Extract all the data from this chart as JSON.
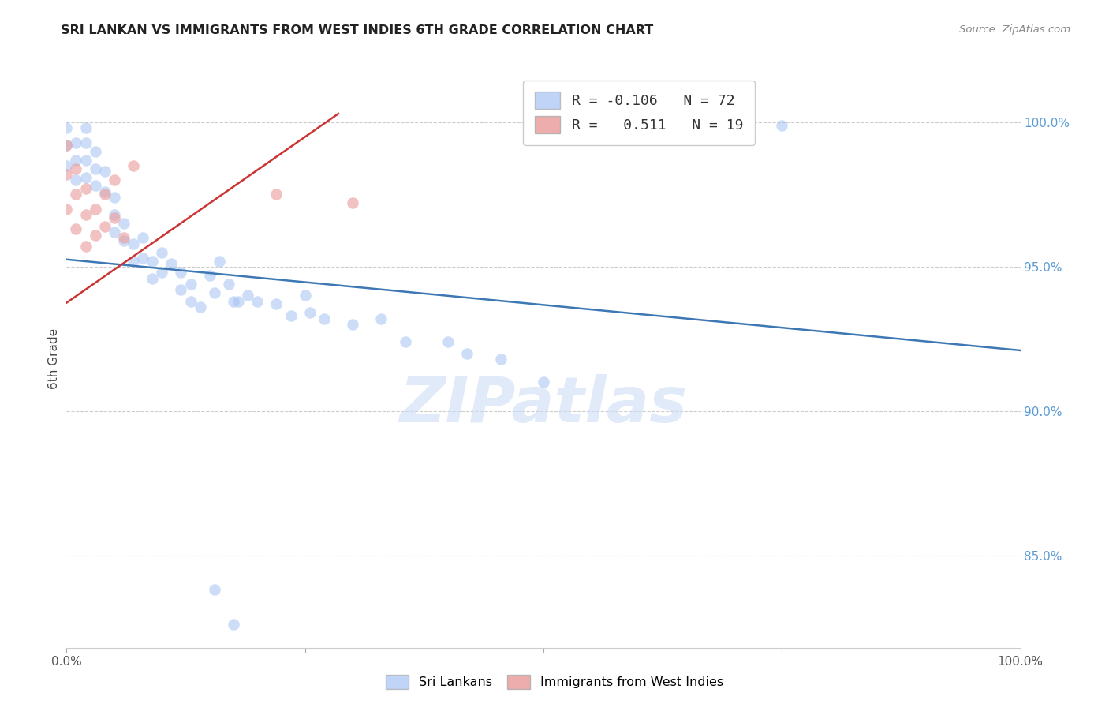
{
  "title": "SRI LANKAN VS IMMIGRANTS FROM WEST INDIES 6TH GRADE CORRELATION CHART",
  "source": "Source: ZipAtlas.com",
  "ylabel": "6th Grade",
  "right_yticks": [
    "100.0%",
    "95.0%",
    "90.0%",
    "85.0%"
  ],
  "right_ytick_vals": [
    1.0,
    0.95,
    0.9,
    0.85
  ],
  "xlim": [
    0.0,
    1.0
  ],
  "ylim": [
    0.818,
    1.018
  ],
  "legend_blue_r": "-0.106",
  "legend_blue_n": "72",
  "legend_pink_r": "0.511",
  "legend_pink_n": "19",
  "blue_color": "#a4c2f4",
  "pink_color": "#ea9999",
  "trendline_blue_color": "#3d78b5",
  "trendline_pink_color": "#cc3333",
  "watermark_text": "ZIPatlas",
  "blue_trendline_x": [
    0.0,
    1.0
  ],
  "blue_trendline_y": [
    0.9525,
    0.921
  ],
  "pink_trendline_x": [
    0.0,
    0.285
  ],
  "pink_trendline_y": [
    0.9375,
    1.003
  ],
  "blue_scatter_x": [
    0.0,
    0.0,
    0.0,
    0.01,
    0.01,
    0.01,
    0.02,
    0.02,
    0.02,
    0.02,
    0.03,
    0.03,
    0.03,
    0.04,
    0.04,
    0.05,
    0.05,
    0.05,
    0.06,
    0.06,
    0.07,
    0.07,
    0.08,
    0.08,
    0.09,
    0.09,
    0.1,
    0.1,
    0.11,
    0.12,
    0.12,
    0.13,
    0.13,
    0.14,
    0.15,
    0.155,
    0.16,
    0.17,
    0.175,
    0.18,
    0.19,
    0.2,
    0.22,
    0.235,
    0.25,
    0.255,
    0.27,
    0.3,
    0.33,
    0.355,
    0.4,
    0.42,
    0.455,
    0.5,
    0.155,
    0.175,
    0.65,
    0.75
  ],
  "blue_scatter_y": [
    0.998,
    0.992,
    0.985,
    0.993,
    0.987,
    0.98,
    0.998,
    0.993,
    0.987,
    0.981,
    0.99,
    0.984,
    0.978,
    0.983,
    0.976,
    0.974,
    0.968,
    0.962,
    0.965,
    0.959,
    0.958,
    0.952,
    0.96,
    0.953,
    0.952,
    0.946,
    0.955,
    0.948,
    0.951,
    0.948,
    0.942,
    0.944,
    0.938,
    0.936,
    0.947,
    0.941,
    0.952,
    0.944,
    0.938,
    0.938,
    0.94,
    0.938,
    0.937,
    0.933,
    0.94,
    0.934,
    0.932,
    0.93,
    0.932,
    0.924,
    0.924,
    0.92,
    0.918,
    0.91,
    0.838,
    0.826,
    1.0,
    0.999
  ],
  "pink_scatter_x": [
    0.0,
    0.0,
    0.0,
    0.01,
    0.01,
    0.01,
    0.02,
    0.02,
    0.02,
    0.03,
    0.03,
    0.04,
    0.04,
    0.05,
    0.05,
    0.06,
    0.07,
    0.22,
    0.3
  ],
  "pink_scatter_y": [
    0.992,
    0.982,
    0.97,
    0.984,
    0.975,
    0.963,
    0.977,
    0.968,
    0.957,
    0.97,
    0.961,
    0.975,
    0.964,
    0.98,
    0.967,
    0.96,
    0.985,
    0.975,
    0.972
  ]
}
